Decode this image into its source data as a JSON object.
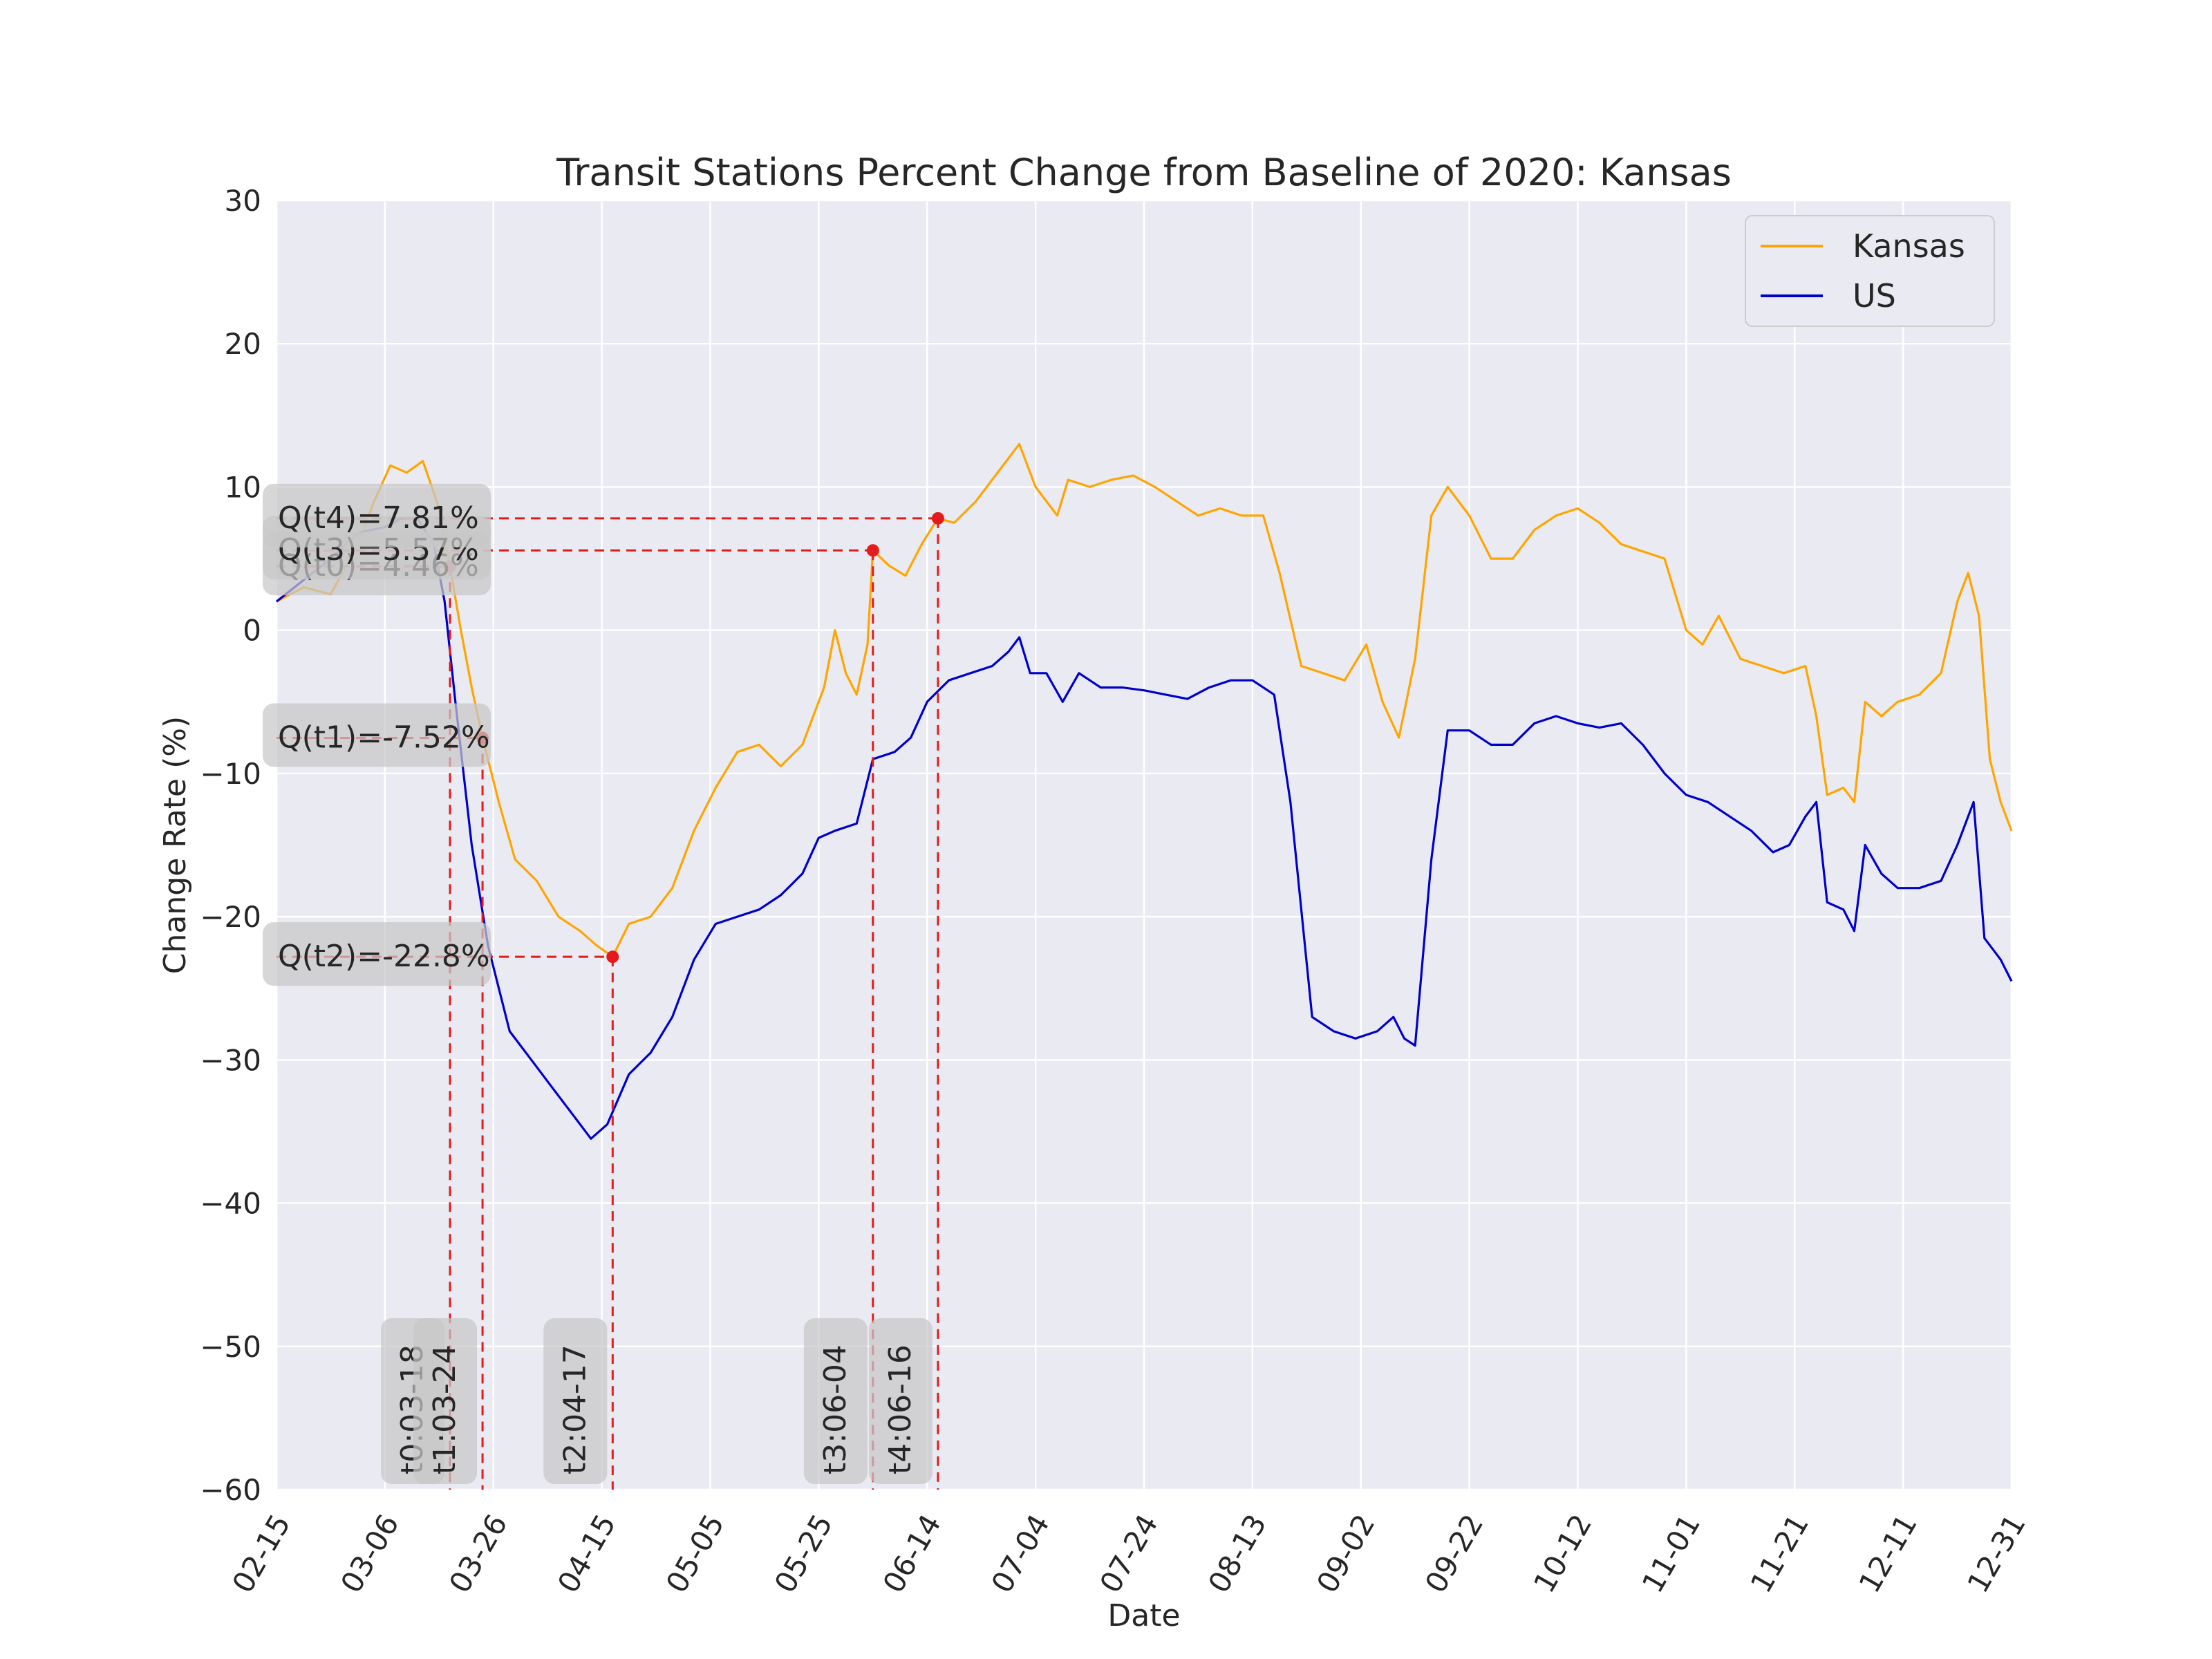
{
  "chart_data": {
    "type": "line",
    "title": "Transit Stations Percent Change from Baseline of 2020: Kansas",
    "xlabel": "Date",
    "ylabel": "Change Rate (%)",
    "ylim": [
      -60,
      30
    ],
    "xlim": [
      "2020-02-15",
      "2020-12-31"
    ],
    "grid": true,
    "legend_position": "top-right",
    "x_tick_labels": [
      "02-15",
      "03-06",
      "03-26",
      "04-15",
      "05-05",
      "05-25",
      "06-14",
      "07-04",
      "07-24",
      "08-13",
      "09-02",
      "09-22",
      "10-12",
      "11-01",
      "11-21",
      "12-11",
      "12-31"
    ],
    "y_tick_labels": [
      "30",
      "20",
      "10",
      "0",
      "−10",
      "−20",
      "−30",
      "−40",
      "−50",
      "−60"
    ],
    "series": [
      {
        "name": "Kansas",
        "color": "#FFA500",
        "points": [
          [
            "2020-02-15",
            2
          ],
          [
            "2020-02-20",
            3
          ],
          [
            "2020-02-25",
            2.5
          ],
          [
            "2020-03-01",
            6
          ],
          [
            "2020-03-04",
            9
          ],
          [
            "2020-03-07",
            11.5
          ],
          [
            "2020-03-10",
            11
          ],
          [
            "2020-03-13",
            11.8
          ],
          [
            "2020-03-16",
            8.5
          ],
          [
            "2020-03-18",
            4.46
          ],
          [
            "2020-03-20",
            0
          ],
          [
            "2020-03-22",
            -4
          ],
          [
            "2020-03-24",
            -7.52
          ],
          [
            "2020-03-27",
            -12
          ],
          [
            "2020-03-30",
            -16
          ],
          [
            "2020-04-03",
            -17.5
          ],
          [
            "2020-04-07",
            -20
          ],
          [
            "2020-04-11",
            -21
          ],
          [
            "2020-04-14",
            -22
          ],
          [
            "2020-04-17",
            -22.8
          ],
          [
            "2020-04-20",
            -20.5
          ],
          [
            "2020-04-24",
            -20
          ],
          [
            "2020-04-28",
            -18
          ],
          [
            "2020-05-02",
            -14
          ],
          [
            "2020-05-06",
            -11
          ],
          [
            "2020-05-10",
            -8.5
          ],
          [
            "2020-05-14",
            -8
          ],
          [
            "2020-05-18",
            -9.5
          ],
          [
            "2020-05-22",
            -8
          ],
          [
            "2020-05-26",
            -4
          ],
          [
            "2020-05-28",
            0
          ],
          [
            "2020-05-30",
            -3
          ],
          [
            "2020-06-01",
            -4.5
          ],
          [
            "2020-06-03",
            -1
          ],
          [
            "2020-06-04",
            5.57
          ],
          [
            "2020-06-07",
            4.5
          ],
          [
            "2020-06-10",
            3.8
          ],
          [
            "2020-06-13",
            6
          ],
          [
            "2020-06-16",
            7.81
          ],
          [
            "2020-06-19",
            7.5
          ],
          [
            "2020-06-23",
            9
          ],
          [
            "2020-06-27",
            11
          ],
          [
            "2020-07-01",
            13
          ],
          [
            "2020-07-04",
            10
          ],
          [
            "2020-07-08",
            8
          ],
          [
            "2020-07-10",
            10.5
          ],
          [
            "2020-07-14",
            10
          ],
          [
            "2020-07-18",
            10.5
          ],
          [
            "2020-07-22",
            10.8
          ],
          [
            "2020-07-26",
            10
          ],
          [
            "2020-07-30",
            9
          ],
          [
            "2020-08-03",
            8
          ],
          [
            "2020-08-07",
            8.5
          ],
          [
            "2020-08-11",
            8
          ],
          [
            "2020-08-15",
            8
          ],
          [
            "2020-08-18",
            4
          ],
          [
            "2020-08-22",
            -2.5
          ],
          [
            "2020-08-26",
            -3
          ],
          [
            "2020-08-30",
            -3.5
          ],
          [
            "2020-09-03",
            -1
          ],
          [
            "2020-09-06",
            -5
          ],
          [
            "2020-09-09",
            -7.5
          ],
          [
            "2020-09-12",
            -2
          ],
          [
            "2020-09-15",
            8
          ],
          [
            "2020-09-18",
            10
          ],
          [
            "2020-09-22",
            8
          ],
          [
            "2020-09-26",
            5
          ],
          [
            "2020-09-30",
            5
          ],
          [
            "2020-10-04",
            7
          ],
          [
            "2020-10-08",
            8
          ],
          [
            "2020-10-12",
            8.5
          ],
          [
            "2020-10-16",
            7.5
          ],
          [
            "2020-10-20",
            6
          ],
          [
            "2020-10-24",
            5.5
          ],
          [
            "2020-10-28",
            5
          ],
          [
            "2020-11-01",
            0
          ],
          [
            "2020-11-04",
            -1
          ],
          [
            "2020-11-07",
            1
          ],
          [
            "2020-11-11",
            -2
          ],
          [
            "2020-11-15",
            -2.5
          ],
          [
            "2020-11-19",
            -3
          ],
          [
            "2020-11-23",
            -2.5
          ],
          [
            "2020-11-25",
            -6
          ],
          [
            "2020-11-27",
            -11.5
          ],
          [
            "2020-11-30",
            -11
          ],
          [
            "2020-12-02",
            -12
          ],
          [
            "2020-12-04",
            -5
          ],
          [
            "2020-12-07",
            -6
          ],
          [
            "2020-12-10",
            -5
          ],
          [
            "2020-12-14",
            -4.5
          ],
          [
            "2020-12-18",
            -3
          ],
          [
            "2020-12-21",
            2
          ],
          [
            "2020-12-23",
            4
          ],
          [
            "2020-12-25",
            1
          ],
          [
            "2020-12-27",
            -9
          ],
          [
            "2020-12-29",
            -12
          ],
          [
            "2020-12-31",
            -14
          ]
        ]
      },
      {
        "name": "US",
        "color": "#0000CC",
        "points": [
          [
            "2020-02-15",
            2
          ],
          [
            "2020-02-20",
            3.5
          ],
          [
            "2020-02-25",
            5
          ],
          [
            "2020-03-01",
            6.8
          ],
          [
            "2020-03-06",
            7.2
          ],
          [
            "2020-03-09",
            7.8
          ],
          [
            "2020-03-12",
            7.8
          ],
          [
            "2020-03-15",
            6
          ],
          [
            "2020-03-17",
            2
          ],
          [
            "2020-03-19",
            -5
          ],
          [
            "2020-03-22",
            -15
          ],
          [
            "2020-03-25",
            -22
          ],
          [
            "2020-03-29",
            -28
          ],
          [
            "2020-04-02",
            -30
          ],
          [
            "2020-04-06",
            -32
          ],
          [
            "2020-04-10",
            -34
          ],
          [
            "2020-04-13",
            -35.5
          ],
          [
            "2020-04-16",
            -34.5
          ],
          [
            "2020-04-20",
            -31
          ],
          [
            "2020-04-24",
            -29.5
          ],
          [
            "2020-04-28",
            -27
          ],
          [
            "2020-05-02",
            -23
          ],
          [
            "2020-05-06",
            -20.5
          ],
          [
            "2020-05-10",
            -20
          ],
          [
            "2020-05-14",
            -19.5
          ],
          [
            "2020-05-18",
            -18.5
          ],
          [
            "2020-05-22",
            -17
          ],
          [
            "2020-05-25",
            -14.5
          ],
          [
            "2020-05-28",
            -14
          ],
          [
            "2020-06-01",
            -13.5
          ],
          [
            "2020-06-04",
            -9
          ],
          [
            "2020-06-08",
            -8.5
          ],
          [
            "2020-06-11",
            -7.5
          ],
          [
            "2020-06-14",
            -5
          ],
          [
            "2020-06-18",
            -3.5
          ],
          [
            "2020-06-22",
            -3
          ],
          [
            "2020-06-26",
            -2.5
          ],
          [
            "2020-06-29",
            -1.5
          ],
          [
            "2020-07-01",
            -0.5
          ],
          [
            "2020-07-03",
            -3
          ],
          [
            "2020-07-06",
            -3
          ],
          [
            "2020-07-09",
            -5
          ],
          [
            "2020-07-12",
            -3
          ],
          [
            "2020-07-16",
            -4
          ],
          [
            "2020-07-20",
            -4
          ],
          [
            "2020-07-24",
            -4.2
          ],
          [
            "2020-07-28",
            -4.5
          ],
          [
            "2020-08-01",
            -4.8
          ],
          [
            "2020-08-05",
            -4
          ],
          [
            "2020-08-09",
            -3.5
          ],
          [
            "2020-08-13",
            -3.5
          ],
          [
            "2020-08-17",
            -4.5
          ],
          [
            "2020-08-20",
            -12
          ],
          [
            "2020-08-24",
            -27
          ],
          [
            "2020-08-28",
            -28
          ],
          [
            "2020-09-01",
            -28.5
          ],
          [
            "2020-09-05",
            -28
          ],
          [
            "2020-09-08",
            -27
          ],
          [
            "2020-09-10",
            -28.5
          ],
          [
            "2020-09-12",
            -29
          ],
          [
            "2020-09-15",
            -16
          ],
          [
            "2020-09-18",
            -7
          ],
          [
            "2020-09-22",
            -7
          ],
          [
            "2020-09-26",
            -8
          ],
          [
            "2020-09-30",
            -8
          ],
          [
            "2020-10-04",
            -6.5
          ],
          [
            "2020-10-08",
            -6
          ],
          [
            "2020-10-12",
            -6.5
          ],
          [
            "2020-10-16",
            -6.8
          ],
          [
            "2020-10-20",
            -6.5
          ],
          [
            "2020-10-24",
            -8
          ],
          [
            "2020-10-28",
            -10
          ],
          [
            "2020-11-01",
            -11.5
          ],
          [
            "2020-11-05",
            -12
          ],
          [
            "2020-11-09",
            -13
          ],
          [
            "2020-11-13",
            -14
          ],
          [
            "2020-11-17",
            -15.5
          ],
          [
            "2020-11-20",
            -15
          ],
          [
            "2020-11-23",
            -13
          ],
          [
            "2020-11-25",
            -12
          ],
          [
            "2020-11-27",
            -19
          ],
          [
            "2020-11-30",
            -19.5
          ],
          [
            "2020-12-02",
            -21
          ],
          [
            "2020-12-04",
            -15
          ],
          [
            "2020-12-07",
            -17
          ],
          [
            "2020-12-10",
            -18
          ],
          [
            "2020-12-14",
            -18
          ],
          [
            "2020-12-18",
            -17.5
          ],
          [
            "2020-12-21",
            -15
          ],
          [
            "2020-12-24",
            -12
          ],
          [
            "2020-12-26",
            -21.5
          ],
          [
            "2020-12-29",
            -23
          ],
          [
            "2020-12-31",
            -24.5
          ]
        ]
      }
    ],
    "markers": [
      {
        "label": "t0:03-18",
        "date": "2020-03-18",
        "value": 4.46,
        "value_label": "Q(t0)=4.46%"
      },
      {
        "label": "t1:03-24",
        "date": "2020-03-24",
        "value": -7.52,
        "value_label": "Q(t1)=-7.52%"
      },
      {
        "label": "t2:04-17",
        "date": "2020-04-17",
        "value": -22.8,
        "value_label": "Q(t2)=-22.8%"
      },
      {
        "label": "t3:06-04",
        "date": "2020-06-04",
        "value": 5.57,
        "value_label": "Q(t3)=5.57%"
      },
      {
        "label": "t4:06-16",
        "date": "2020-06-16",
        "value": 7.81,
        "value_label": "Q(t4)=7.81%"
      }
    ]
  }
}
